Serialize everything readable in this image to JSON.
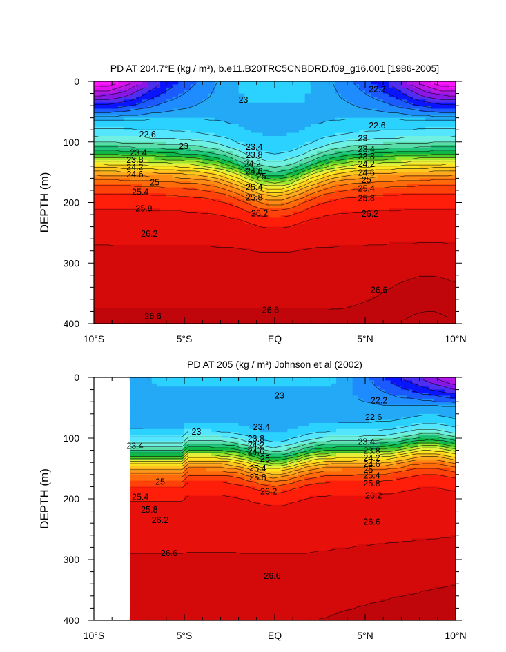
{
  "chart_data": [
    {
      "type": "contour",
      "title": "PD AT 204.7°E (kg / m³), b.e11.B20TRC5CNBDRD.f09_g16.001 [1986-2005]",
      "ylabel": "DEPTH (m)",
      "xlabel": "",
      "xlim": [
        -10,
        10
      ],
      "ylim": [
        0,
        400
      ],
      "xticks": [
        {
          "value": -10,
          "label": "10°S"
        },
        {
          "value": -5,
          "label": "5°S"
        },
        {
          "value": 0,
          "label": "EQ"
        },
        {
          "value": 5,
          "label": "5°N"
        },
        {
          "value": 10,
          "label": "10°N"
        }
      ],
      "yticks": [
        {
          "value": 0,
          "label": "0"
        },
        {
          "value": 100,
          "label": "100"
        },
        {
          "value": 200,
          "label": "200"
        },
        {
          "value": 300,
          "label": "300"
        },
        {
          "value": 400,
          "label": "400"
        }
      ],
      "data_xrange": [
        -10,
        10
      ],
      "contour_interval": 0.2,
      "contour_labels": [
        {
          "lat": -7.5,
          "depth": 88,
          "label": "22.6"
        },
        {
          "lat": -5.3,
          "depth": 107,
          "label": "23"
        },
        {
          "lat": -2.0,
          "depth": 31,
          "label": "23"
        },
        {
          "lat": 5.2,
          "depth": 13,
          "label": "22.2"
        },
        {
          "lat": 5.2,
          "depth": 73,
          "label": "22.6"
        },
        {
          "lat": 4.6,
          "depth": 94,
          "label": "23"
        },
        {
          "lat": -8.0,
          "depth": 118,
          "label": "23.4"
        },
        {
          "lat": -8.2,
          "depth": 130,
          "label": "23.8"
        },
        {
          "lat": -8.2,
          "depth": 142,
          "label": "24.2"
        },
        {
          "lat": -8.2,
          "depth": 154,
          "label": "24.6"
        },
        {
          "lat": -6.9,
          "depth": 167,
          "label": "25"
        },
        {
          "lat": -7.9,
          "depth": 183,
          "label": "25.4"
        },
        {
          "lat": -7.7,
          "depth": 210,
          "label": "25.8"
        },
        {
          "lat": -7.4,
          "depth": 252,
          "label": "26.2"
        },
        {
          "lat": -1.6,
          "depth": 108,
          "label": "23.4"
        },
        {
          "lat": -1.6,
          "depth": 122,
          "label": "23.8"
        },
        {
          "lat": -1.7,
          "depth": 136,
          "label": "24.2"
        },
        {
          "lat": -1.6,
          "depth": 149,
          "label": "24.6"
        },
        {
          "lat": -1.0,
          "depth": 157,
          "label": "25"
        },
        {
          "lat": -1.6,
          "depth": 175,
          "label": "25.4"
        },
        {
          "lat": -1.6,
          "depth": 192,
          "label": "25.8"
        },
        {
          "lat": -1.3,
          "depth": 218,
          "label": "26.2"
        },
        {
          "lat": 4.6,
          "depth": 112,
          "label": "23.4"
        },
        {
          "lat": 4.6,
          "depth": 124,
          "label": "23.8"
        },
        {
          "lat": 4.6,
          "depth": 137,
          "label": "24.2"
        },
        {
          "lat": 4.6,
          "depth": 151,
          "label": "24.6"
        },
        {
          "lat": 4.8,
          "depth": 163,
          "label": "25"
        },
        {
          "lat": 4.6,
          "depth": 177,
          "label": "25.4"
        },
        {
          "lat": 4.6,
          "depth": 193,
          "label": "25.8"
        },
        {
          "lat": 4.8,
          "depth": 219,
          "label": "26.2"
        },
        {
          "lat": -7.2,
          "depth": 388,
          "label": "26.6"
        },
        {
          "lat": -0.7,
          "depth": 378,
          "label": "26.6"
        },
        {
          "lat": 5.3,
          "depth": 345,
          "label": "26.6"
        }
      ]
    },
    {
      "type": "contour",
      "title": "PD AT 205 (kg / m³) Johnson et al (2002)",
      "ylabel": "DEPTH (m)",
      "xlabel": "",
      "xlim": [
        -10,
        10
      ],
      "ylim": [
        0,
        400
      ],
      "xticks": [
        {
          "value": -10,
          "label": "10°S"
        },
        {
          "value": -5,
          "label": "5°S"
        },
        {
          "value": 0,
          "label": "EQ"
        },
        {
          "value": 5,
          "label": "5°N"
        },
        {
          "value": 10,
          "label": "10°N"
        }
      ],
      "yticks": [
        {
          "value": 0,
          "label": "0"
        },
        {
          "value": 100,
          "label": "100"
        },
        {
          "value": 200,
          "label": "200"
        },
        {
          "value": 300,
          "label": "300"
        },
        {
          "value": 400,
          "label": "400"
        }
      ],
      "data_xrange": [
        -8,
        10
      ],
      "contour_interval": 0.2,
      "contour_labels": [
        {
          "lat": 0.0,
          "depth": 30,
          "label": "23"
        },
        {
          "lat": 5.3,
          "depth": 38,
          "label": "22.2"
        },
        {
          "lat": 5.0,
          "depth": 66,
          "label": "22.6"
        },
        {
          "lat": -4.6,
          "depth": 90,
          "label": "23"
        },
        {
          "lat": -1.2,
          "depth": 82,
          "label": "23.4"
        },
        {
          "lat": -8.2,
          "depth": 113,
          "label": "23.4"
        },
        {
          "lat": -1.5,
          "depth": 101,
          "label": "23.8"
        },
        {
          "lat": -1.5,
          "depth": 112,
          "label": "24.2"
        },
        {
          "lat": -1.5,
          "depth": 122,
          "label": "24.6"
        },
        {
          "lat": -0.8,
          "depth": 134,
          "label": "25"
        },
        {
          "lat": -1.4,
          "depth": 150,
          "label": "25.4"
        },
        {
          "lat": -1.4,
          "depth": 165,
          "label": "25.8"
        },
        {
          "lat": -0.8,
          "depth": 188,
          "label": "26.2"
        },
        {
          "lat": 4.6,
          "depth": 106,
          "label": "23.4"
        },
        {
          "lat": 4.9,
          "depth": 121,
          "label": "23.8"
        },
        {
          "lat": 4.9,
          "depth": 133,
          "label": "24.2"
        },
        {
          "lat": 4.9,
          "depth": 143,
          "label": "24.6"
        },
        {
          "lat": 4.9,
          "depth": 152,
          "label": "25"
        },
        {
          "lat": 4.9,
          "depth": 162,
          "label": "25.4"
        },
        {
          "lat": 4.9,
          "depth": 175,
          "label": "25.8"
        },
        {
          "lat": 5.0,
          "depth": 195,
          "label": "26.2"
        },
        {
          "lat": -6.6,
          "depth": 172,
          "label": "25"
        },
        {
          "lat": -7.9,
          "depth": 197,
          "label": "25.4"
        },
        {
          "lat": -7.4,
          "depth": 218,
          "label": "25.8"
        },
        {
          "lat": -6.8,
          "depth": 235,
          "label": "26.2"
        },
        {
          "lat": -6.3,
          "depth": 290,
          "label": "26.6"
        },
        {
          "lat": -0.6,
          "depth": 327,
          "label": "26.6"
        },
        {
          "lat": 4.9,
          "depth": 238,
          "label": "26.6"
        }
      ]
    }
  ]
}
